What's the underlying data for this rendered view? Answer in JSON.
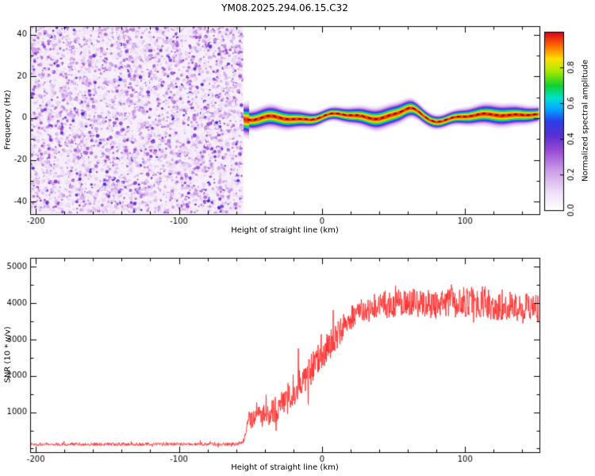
{
  "title": "YM08.2025.294.06.15.C32",
  "chart_data": [
    {
      "type": "heatmap",
      "name": "spectrogram",
      "title": "YM08.2025.294.06.15.C32",
      "xlabel": "Height of straight line (km)",
      "ylabel": "Frequency (Hz)",
      "xlim": [
        -204,
        152
      ],
      "ylim": [
        -46,
        44
      ],
      "xticks": [
        -200,
        -100,
        0,
        100
      ],
      "yticks": [
        -40,
        -20,
        0,
        20,
        40
      ],
      "x_minor_step": 20,
      "y_minor_step": 10,
      "noise_seed": 99,
      "band_seed": 7,
      "noise_region": {
        "x_start": -204,
        "x_end": -55,
        "value_max": 0.42,
        "description": "low-amplitude purple speckle noise covering all frequencies"
      },
      "signal_band": {
        "x_start": -55,
        "x_end": 152,
        "center_hz": 0.5,
        "width_hz": 2.1,
        "peak_value": 0.97,
        "bump_x": 62,
        "bump_amp": 4.5,
        "bump2_x": 122,
        "bump2_amp": 1.6,
        "description": "narrow echo band near 0 Hz, red core with rainbow fringes"
      },
      "colorbar": {
        "label": "Normalized spectral amplitude",
        "ticks": [
          0.0,
          0.2,
          0.4,
          0.6,
          0.8
        ],
        "range": [
          0,
          1
        ]
      },
      "colormap": [
        [
          0.0,
          "#ffffff"
        ],
        [
          0.1,
          "#efe0f7"
        ],
        [
          0.22,
          "#cda0e8"
        ],
        [
          0.33,
          "#9b4fd6"
        ],
        [
          0.42,
          "#5a2fd0"
        ],
        [
          0.5,
          "#2a3fe8"
        ],
        [
          0.57,
          "#00a8ff"
        ],
        [
          0.63,
          "#00e0d0"
        ],
        [
          0.7,
          "#10d030"
        ],
        [
          0.78,
          "#a8e800"
        ],
        [
          0.85,
          "#ffe000"
        ],
        [
          0.92,
          "#ff7000"
        ],
        [
          1.0,
          "#dc0020"
        ]
      ]
    },
    {
      "type": "line",
      "name": "snr-profile",
      "xlabel": "Height of straight line (km)",
      "ylabel": "SNR (10 * v/v)",
      "xlim": [
        -204,
        152
      ],
      "ylim": [
        -100,
        5250
      ],
      "xticks": [
        -200,
        -100,
        0,
        100
      ],
      "yticks": [
        1000,
        2000,
        3000,
        4000,
        5000
      ],
      "x_minor_step": 20,
      "y_minor_step": 500,
      "line_color": "#ff2a2a",
      "seed": 1337,
      "envelope": [
        [
          -204,
          120,
          90
        ],
        [
          -60,
          120,
          90
        ],
        [
          -55,
          220,
          160
        ],
        [
          -51,
          750,
          520
        ],
        [
          -48,
          950,
          720
        ],
        [
          -40,
          900,
          620
        ],
        [
          -32,
          1100,
          720
        ],
        [
          -25,
          1350,
          820
        ],
        [
          -15,
          1850,
          920
        ],
        [
          -5,
          2350,
          920
        ],
        [
          5,
          2850,
          820
        ],
        [
          15,
          3350,
          720
        ],
        [
          25,
          3750,
          700
        ],
        [
          40,
          3950,
          750
        ],
        [
          60,
          4050,
          800
        ],
        [
          80,
          3950,
          800
        ],
        [
          100,
          4050,
          850
        ],
        [
          120,
          3950,
          820
        ],
        [
          140,
          3900,
          800
        ],
        [
          152,
          3850,
          720
        ]
      ]
    }
  ]
}
